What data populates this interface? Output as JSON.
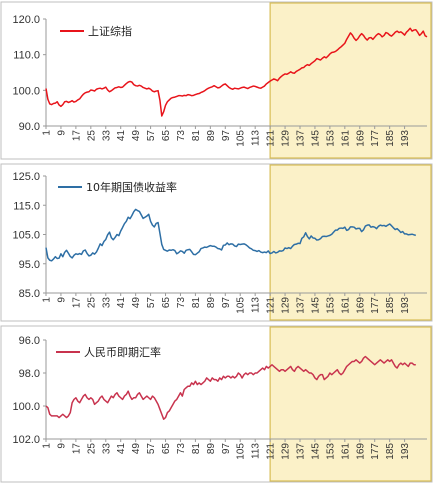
{
  "x_tick_labels": [
    "1",
    "9",
    "17",
    "25",
    "33",
    "41",
    "49",
    "57",
    "65",
    "73",
    "81",
    "89",
    "97",
    "105",
    "113",
    "121",
    "129",
    "137",
    "145",
    "153",
    "161",
    "169",
    "177",
    "185",
    "193"
  ],
  "colors": {
    "highlight_fill": "#fbf1c8",
    "highlight_stroke": "#d9bd55",
    "axis": "#9a9a9a",
    "panel_border": "#bfbfbf"
  },
  "chart_data": [
    {
      "type": "line",
      "legend": "上证综指",
      "color": "#e8141b",
      "y_tick_labels": [
        "120.0",
        "110.0",
        "100.0",
        "90.0"
      ],
      "ylim": [
        90,
        120
      ],
      "inverted": false,
      "highlight_x_range": [
        121,
        197
      ],
      "series_values": [
        100.5,
        97.5,
        96.2,
        96.0,
        96.3,
        96.4,
        96.8,
        95.9,
        95.5,
        96.0,
        96.8,
        96.9,
        96.6,
        96.8,
        97.1,
        96.7,
        96.9,
        97.3,
        97.6,
        98.3,
        98.9,
        99.3,
        99.5,
        99.6,
        100.1,
        100.0,
        99.8,
        100.3,
        100.5,
        100.6,
        100.4,
        100.6,
        100.9,
        100.1,
        99.6,
        99.9,
        100.3,
        100.7,
        100.8,
        101.0,
        100.8,
        100.9,
        101.4,
        101.9,
        102.3,
        102.5,
        102.3,
        101.6,
        101.3,
        101.2,
        101.4,
        101.2,
        100.8,
        100.6,
        100.4,
        100.6,
        100.3,
        99.8,
        99.6,
        99.8,
        99.9,
        97.2,
        92.8,
        94.0,
        95.8,
        96.8,
        97.3,
        97.8,
        98.0,
        98.1,
        98.3,
        98.5,
        98.5,
        98.4,
        98.6,
        98.5,
        98.8,
        98.7,
        98.5,
        98.6,
        98.8,
        99.0,
        99.1,
        99.4,
        99.6,
        99.9,
        100.3,
        100.6,
        100.8,
        101.0,
        101.3,
        101.0,
        100.7,
        100.8,
        101.2,
        101.6,
        101.8,
        101.3,
        100.8,
        100.5,
        100.3,
        100.6,
        100.5,
        100.4,
        100.6,
        100.8,
        100.9,
        100.7,
        100.5,
        100.8,
        101.0,
        101.2,
        101.1,
        100.9,
        100.7,
        100.6,
        100.9,
        101.2,
        101.8,
        102.2,
        102.6,
        102.9,
        103.2,
        103.0,
        102.7,
        103.4,
        103.9,
        104.3,
        104.6,
        104.5,
        104.8,
        105.2,
        104.9,
        104.8,
        105.3,
        105.6,
        105.9,
        106.3,
        106.4,
        106.9,
        107.2,
        107.0,
        107.5,
        107.9,
        108.3,
        108.9,
        108.7,
        108.5,
        109.0,
        109.4,
        109.1,
        109.6,
        110.2,
        110.6,
        110.7,
        110.9,
        111.3,
        111.8,
        112.2,
        112.7,
        113.2,
        114.3,
        115.2,
        116.1,
        115.5,
        114.6,
        114.0,
        114.5,
        115.3,
        115.9,
        115.4,
        114.6,
        114.1,
        114.7,
        114.8,
        114.3,
        114.9,
        115.5,
        115.9,
        115.6,
        115.0,
        115.4,
        116.2,
        116.0,
        115.5,
        115.2,
        115.7,
        116.3,
        116.6,
        116.2,
        116.4,
        116.0,
        115.5,
        116.3,
        116.8,
        117.4,
        116.6,
        116.9,
        117.0,
        116.3,
        115.4,
        115.9,
        116.6,
        115.3,
        115.0
      ]
    },
    {
      "type": "line",
      "legend": "10年期国债收益率",
      "color": "#2e6fa5",
      "y_tick_labels": [
        "125.0",
        "115.0",
        "105.0",
        "95.0",
        "85.0"
      ],
      "ylim": [
        85,
        125
      ],
      "inverted": false,
      "highlight_x_range": [
        121,
        197
      ],
      "series_values": [
        100.5,
        97.0,
        96.2,
        96.0,
        96.6,
        97.4,
        96.8,
        96.9,
        98.4,
        97.4,
        98.9,
        99.6,
        98.6,
        97.5,
        97.0,
        97.9,
        98.4,
        98.2,
        98.5,
        98.2,
        99.4,
        99.7,
        98.5,
        97.7,
        97.9,
        98.7,
        98.3,
        99.0,
        100.3,
        101.8,
        101.2,
        102.6,
        103.3,
        104.9,
        105.8,
        103.9,
        103.2,
        104.0,
        105.0,
        104.6,
        106.2,
        107.4,
        108.7,
        109.5,
        110.9,
        110.4,
        111.5,
        112.8,
        113.6,
        113.2,
        112.9,
        111.7,
        110.5,
        110.9,
        111.3,
        111.9,
        109.5,
        108.2,
        107.6,
        108.8,
        109.1,
        105.4,
        101.6,
        99.9,
        99.6,
        99.3,
        99.7,
        99.6,
        99.8,
        99.5,
        98.4,
        98.8,
        99.4,
        99.2,
        98.6,
        99.6,
        99.8,
        99.9,
        99.1,
        98.2,
        98.1,
        98.6,
        99.1,
        100.2,
        100.4,
        100.7,
        100.6,
        100.9,
        101.2,
        101.0,
        101.0,
        100.7,
        100.2,
        100.1,
        99.7,
        101.3,
        101.4,
        102.1,
        101.5,
        101.8,
        101.7,
        101.1,
        100.9,
        101.7,
        101.6,
        101.7,
        101.8,
        101.5,
        101.0,
        100.4,
        100.1,
        99.6,
        99.5,
        99.2,
        99.5,
        99.0,
        98.8,
        99.0,
        98.8,
        99.4,
        98.5,
        98.7,
        99.2,
        98.7,
        98.9,
        99.4,
        99.3,
        99.5,
        100.4,
        100.2,
        100.5,
        100.2,
        101.0,
        101.6,
        101.7,
        102.0,
        101.9,
        103.7,
        104.2,
        105.6,
        104.3,
        103.5,
        104.5,
        103.8,
        103.7,
        103.1,
        103.2,
        103.6,
        104.3,
        104.4,
        104.3,
        104.5,
        104.7,
        105.1,
        105.8,
        106.5,
        106.5,
        107.1,
        107.2,
        107.1,
        107.5,
        106.4,
        106.7,
        107.6,
        107.6,
        107.5,
        106.9,
        107.1,
        107.1,
        106.0,
        106.6,
        107.9,
        108.2,
        108.3,
        107.5,
        107.7,
        107.5,
        107.0,
        107.8,
        108.2,
        108.0,
        108.1,
        107.8,
        108.2,
        108.6,
        108.0,
        107.3,
        106.7,
        107.0,
        106.4,
        105.7,
        106.0,
        105.2,
        105.2,
        104.9,
        105.0,
        105.1,
        104.9,
        104.7
      ]
    },
    {
      "type": "line",
      "legend": "人民币即期汇率",
      "color": "#c8334e",
      "y_tick_labels": [
        "96.0",
        "98.0",
        "100.0",
        "102.0"
      ],
      "ylim": [
        96,
        102
      ],
      "inverted": true,
      "highlight_x_range": [
        121,
        197
      ],
      "series_values": [
        100.0,
        100.1,
        100.5,
        100.6,
        100.6,
        100.6,
        100.6,
        100.7,
        100.6,
        100.5,
        100.6,
        100.7,
        100.6,
        100.4,
        99.8,
        99.6,
        99.5,
        99.7,
        99.8,
        99.6,
        99.4,
        99.3,
        99.5,
        99.6,
        99.5,
        99.6,
        99.9,
        99.8,
        99.7,
        99.5,
        99.4,
        99.6,
        99.7,
        99.8,
        99.6,
        99.4,
        99.5,
        99.3,
        99.2,
        99.4,
        99.5,
        99.6,
        99.4,
        99.3,
        99.1,
        99.4,
        99.6,
        99.5,
        99.5,
        99.3,
        99.2,
        99.4,
        99.6,
        99.5,
        99.4,
        99.5,
        99.6,
        99.4,
        99.5,
        99.7,
        99.9,
        100.2,
        100.5,
        100.8,
        100.7,
        100.4,
        100.3,
        100.1,
        99.9,
        99.7,
        99.6,
        99.4,
        99.2,
        99.4,
        99.0,
        98.9,
        98.8,
        98.8,
        98.6,
        98.7,
        98.5,
        98.7,
        98.6,
        98.7,
        98.6,
        98.5,
        98.3,
        98.4,
        98.5,
        98.3,
        98.4,
        98.4,
        98.5,
        98.3,
        98.4,
        98.2,
        98.3,
        98.2,
        98.2,
        98.3,
        98.2,
        98.3,
        98.2,
        98.0,
        98.1,
        98.3,
        98.1,
        98.0,
        98.1,
        98.0,
        98.0,
        98.1,
        98.0,
        98.0,
        97.9,
        97.8,
        97.7,
        97.8,
        97.6,
        97.7,
        97.6,
        97.5,
        97.6,
        97.7,
        97.8,
        97.9,
        97.8,
        97.8,
        97.9,
        97.8,
        97.7,
        97.6,
        97.8,
        97.9,
        97.7,
        97.6,
        97.7,
        97.8,
        97.9,
        97.8,
        97.9,
        98.0,
        98.0,
        98.1,
        98.3,
        98.4,
        98.2,
        98.1,
        98.1,
        98.4,
        98.3,
        98.2,
        98.0,
        98.1,
        98.0,
        97.9,
        97.8,
        98.0,
        98.1,
        98.0,
        97.8,
        97.6,
        97.5,
        97.4,
        97.3,
        97.3,
        97.2,
        97.3,
        97.4,
        97.3,
        97.1,
        97.0,
        97.1,
        97.2,
        97.3,
        97.4,
        97.5,
        97.4,
        97.3,
        97.2,
        97.3,
        97.4,
        97.3,
        97.2,
        97.3,
        97.2,
        97.4,
        97.6,
        97.7,
        97.5,
        97.4,
        97.5,
        97.4,
        97.5,
        97.6,
        97.4,
        97.4,
        97.5,
        97.5
      ]
    }
  ]
}
